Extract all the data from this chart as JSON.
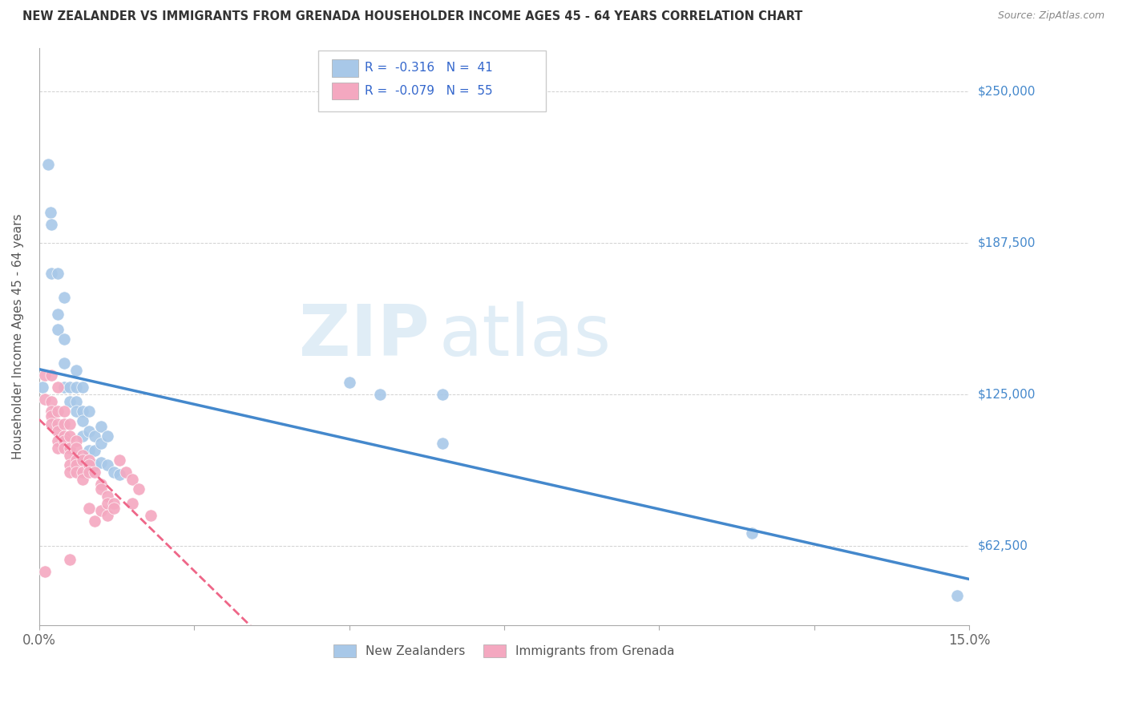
{
  "title": "NEW ZEALANDER VS IMMIGRANTS FROM GRENADA HOUSEHOLDER INCOME AGES 45 - 64 YEARS CORRELATION CHART",
  "source": "Source: ZipAtlas.com",
  "ylabel": "Householder Income Ages 45 - 64 years",
  "ytick_labels": [
    "$62,500",
    "$125,000",
    "$187,500",
    "$250,000"
  ],
  "ytick_values": [
    62500,
    125000,
    187500,
    250000
  ],
  "xmin": 0.0,
  "xmax": 0.15,
  "ymin": 30000,
  "ymax": 268000,
  "legend_nz": "R =  -0.316   N =  41",
  "legend_gr": "R =  -0.079   N =  55",
  "nz_color": "#a8c8e8",
  "gr_color": "#f4a8c0",
  "nz_line_color": "#4488cc",
  "gr_line_color": "#ee6688",
  "watermark_zip": "ZIP",
  "watermark_atlas": "atlas",
  "nz_scatter": [
    [
      0.0015,
      220000
    ],
    [
      0.0018,
      200000
    ],
    [
      0.002,
      195000
    ],
    [
      0.002,
      175000
    ],
    [
      0.003,
      175000
    ],
    [
      0.003,
      158000
    ],
    [
      0.003,
      152000
    ],
    [
      0.004,
      165000
    ],
    [
      0.004,
      148000
    ],
    [
      0.004,
      138000
    ],
    [
      0.004,
      128000
    ],
    [
      0.005,
      128000
    ],
    [
      0.005,
      122000
    ],
    [
      0.006,
      135000
    ],
    [
      0.006,
      128000
    ],
    [
      0.006,
      122000
    ],
    [
      0.006,
      118000
    ],
    [
      0.007,
      128000
    ],
    [
      0.007,
      118000
    ],
    [
      0.007,
      114000
    ],
    [
      0.007,
      108000
    ],
    [
      0.008,
      118000
    ],
    [
      0.008,
      110000
    ],
    [
      0.008,
      102000
    ],
    [
      0.009,
      96000
    ],
    [
      0.009,
      108000
    ],
    [
      0.009,
      102000
    ],
    [
      0.01,
      112000
    ],
    [
      0.01,
      105000
    ],
    [
      0.01,
      97000
    ],
    [
      0.011,
      108000
    ],
    [
      0.011,
      96000
    ],
    [
      0.012,
      93000
    ],
    [
      0.013,
      92000
    ],
    [
      0.0005,
      128000
    ],
    [
      0.05,
      130000
    ],
    [
      0.055,
      125000
    ],
    [
      0.065,
      105000
    ],
    [
      0.065,
      125000
    ],
    [
      0.115,
      68000
    ],
    [
      0.148,
      42000
    ]
  ],
  "gr_scatter": [
    [
      0.001,
      133000
    ],
    [
      0.001,
      123000
    ],
    [
      0.002,
      133000
    ],
    [
      0.002,
      122000
    ],
    [
      0.002,
      118000
    ],
    [
      0.002,
      116000
    ],
    [
      0.002,
      113000
    ],
    [
      0.003,
      128000
    ],
    [
      0.003,
      118000
    ],
    [
      0.003,
      113000
    ],
    [
      0.003,
      110000
    ],
    [
      0.003,
      106000
    ],
    [
      0.003,
      103000
    ],
    [
      0.004,
      118000
    ],
    [
      0.004,
      113000
    ],
    [
      0.004,
      108000
    ],
    [
      0.004,
      106000
    ],
    [
      0.004,
      103000
    ],
    [
      0.005,
      113000
    ],
    [
      0.005,
      108000
    ],
    [
      0.005,
      103000
    ],
    [
      0.005,
      100000
    ],
    [
      0.005,
      96000
    ],
    [
      0.005,
      93000
    ],
    [
      0.005,
      57000
    ],
    [
      0.006,
      106000
    ],
    [
      0.006,
      103000
    ],
    [
      0.006,
      98000
    ],
    [
      0.006,
      96000
    ],
    [
      0.006,
      93000
    ],
    [
      0.007,
      100000
    ],
    [
      0.007,
      98000
    ],
    [
      0.007,
      93000
    ],
    [
      0.007,
      90000
    ],
    [
      0.008,
      98000
    ],
    [
      0.008,
      96000
    ],
    [
      0.008,
      93000
    ],
    [
      0.008,
      78000
    ],
    [
      0.009,
      93000
    ],
    [
      0.009,
      73000
    ],
    [
      0.01,
      88000
    ],
    [
      0.01,
      86000
    ],
    [
      0.01,
      77000
    ],
    [
      0.011,
      83000
    ],
    [
      0.011,
      80000
    ],
    [
      0.011,
      75000
    ],
    [
      0.012,
      80000
    ],
    [
      0.012,
      78000
    ],
    [
      0.013,
      98000
    ],
    [
      0.014,
      93000
    ],
    [
      0.015,
      90000
    ],
    [
      0.015,
      80000
    ],
    [
      0.016,
      86000
    ],
    [
      0.018,
      75000
    ],
    [
      0.001,
      52000
    ]
  ]
}
